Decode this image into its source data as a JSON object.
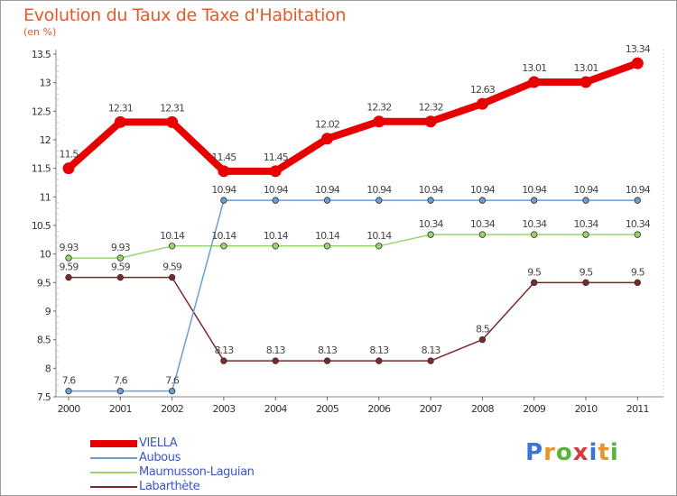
{
  "title": "Evolution du Taux de Taxe d'Habitation",
  "subtitle": "(en %)",
  "logo": {
    "letters": [
      "P",
      "r",
      "o",
      "x",
      "i",
      "t",
      "i"
    ],
    "colors": [
      "#3f74d6",
      "#e9942a",
      "#5bb33c",
      "#d63c3c",
      "#3f74d6",
      "#e9942a",
      "#5bb33c"
    ]
  },
  "chart_data": {
    "type": "line",
    "x": [
      "2000",
      "2001",
      "2002",
      "2003",
      "2004",
      "2005",
      "2006",
      "2007",
      "2008",
      "2009",
      "2010",
      "2011"
    ],
    "ylim": [
      7.5,
      13.5
    ],
    "yticks": [
      "7.5",
      "8",
      "8.5",
      "9",
      "9.5",
      "10",
      "10.5",
      "11",
      "11.5",
      "12",
      "12.5",
      "13",
      "13.5"
    ],
    "grid": false,
    "legend_position": "bottom-left",
    "series": [
      {
        "name": "VIELLA",
        "color": "#e60000",
        "values": [
          11.5,
          12.31,
          12.31,
          11.45,
          11.45,
          12.02,
          12.32,
          12.32,
          12.63,
          13.01,
          13.01,
          13.34
        ],
        "labels": [
          "11.5",
          "12.31",
          "12.31",
          "11.45",
          "11.45",
          "12.02",
          "12.32",
          "12.32",
          "12.63",
          "13.01",
          "13.01",
          "13.34"
        ]
      },
      {
        "name": "Aubous",
        "color": "#6a9fd0",
        "values": [
          7.6,
          7.6,
          7.6,
          10.94,
          10.94,
          10.94,
          10.94,
          10.94,
          10.94,
          10.94,
          10.94,
          10.94
        ],
        "labels": [
          "7.6",
          "7.6",
          "7.6",
          "10.94",
          "10.94",
          "10.94",
          "10.94",
          "10.94",
          "10.94",
          "10.94",
          "10.94",
          "10.94"
        ]
      },
      {
        "name": "Maumusson-Laguian",
        "color": "#98d66a",
        "values": [
          9.93,
          9.93,
          10.14,
          10.14,
          10.14,
          10.14,
          10.14,
          10.34,
          10.34,
          10.34,
          10.34,
          10.34
        ],
        "labels": [
          "9.93",
          "9.93",
          "10.14",
          "10.14",
          "10.14",
          "10.14",
          "10.14",
          "10.34",
          "10.34",
          "10.34",
          "10.34",
          "10.34"
        ]
      },
      {
        "name": "Labarthète",
        "color": "#7a2a2a",
        "values": [
          9.59,
          9.59,
          9.59,
          8.13,
          8.13,
          8.13,
          8.13,
          8.13,
          8.5,
          9.5,
          9.5,
          9.5
        ],
        "labels": [
          "9.59",
          "9.59",
          "9.59",
          "8.13",
          "8.13",
          "8.13",
          "8.13",
          "8.13",
          "8.5",
          "9.5",
          "9.5",
          "9.5"
        ]
      }
    ]
  }
}
